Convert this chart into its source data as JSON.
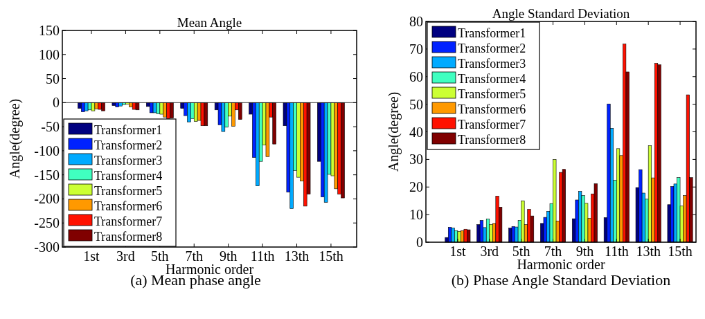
{
  "chart_data": [
    {
      "type": "bar",
      "title": "Mean Angle",
      "xlabel": "Harmonic order",
      "ylabel": "Angle(degree)",
      "categories": [
        "1st",
        "3rd",
        "5th",
        "7th",
        "9th",
        "11th",
        "13th",
        "15th"
      ],
      "ylim": [
        -300,
        150
      ],
      "yticks": [
        -300,
        -250,
        -200,
        -150,
        -100,
        -50,
        0,
        50,
        100,
        150
      ],
      "legend": "bottom left",
      "annotations": [
        "(a) Mean phase angle"
      ],
      "series": [
        {
          "name": "Transformer1",
          "color": "#000080",
          "values": [
            -12,
            -6,
            -8,
            -12,
            -15,
            -24,
            -48,
            -122
          ]
        },
        {
          "name": "Transformer2",
          "color": "#0022ff",
          "values": [
            -19,
            -9,
            -21,
            -27,
            -46,
            -114,
            -186,
            -196
          ]
        },
        {
          "name": "Transformer3",
          "color": "#00aaff",
          "values": [
            -17,
            -7,
            -21,
            -40,
            -60,
            -173,
            -220,
            -207
          ]
        },
        {
          "name": "Transformer4",
          "color": "#40ffc0",
          "values": [
            -15,
            -4,
            -23,
            -33,
            -51,
            -122,
            -141,
            -149
          ]
        },
        {
          "name": "Transformer5",
          "color": "#ccff33",
          "values": [
            -17,
            -3,
            -24,
            -39,
            -28,
            -88,
            -155,
            -152
          ]
        },
        {
          "name": "Transformer6",
          "color": "#ff9900",
          "values": [
            -13,
            -9,
            -30,
            -37,
            -49,
            -112,
            -163,
            -179
          ]
        },
        {
          "name": "Transformer7",
          "color": "#ff1100",
          "values": [
            -14,
            -14,
            -33,
            -48,
            -15,
            -30,
            -215,
            -190
          ]
        },
        {
          "name": "Transformer8",
          "color": "#800000",
          "values": [
            -17,
            -15,
            -32,
            -48,
            -35,
            -86,
            -190,
            -198
          ]
        }
      ]
    },
    {
      "type": "bar",
      "title": "Angle Standard Deviation",
      "xlabel": "Harmonic order",
      "ylabel": "Angle(degree)",
      "categories": [
        "1st",
        "3rd",
        "5th",
        "7th",
        "9th",
        "11th",
        "13th",
        "15th"
      ],
      "ylim": [
        0,
        80
      ],
      "yticks": [
        0,
        10,
        20,
        30,
        40,
        50,
        60,
        70,
        80
      ],
      "legend": "top left",
      "annotations": [
        "(b) Phase Angle Standard Deviation"
      ],
      "series": [
        {
          "name": "Transformer1",
          "color": "#000080",
          "values": [
            1.7,
            6.4,
            5.1,
            6.8,
            8.5,
            8.9,
            19.8,
            13.6
          ]
        },
        {
          "name": "Transformer2",
          "color": "#0022ff",
          "values": [
            5.4,
            7.9,
            5.7,
            9,
            15.3,
            50.1,
            26.3,
            20.2
          ]
        },
        {
          "name": "Transformer3",
          "color": "#00aaff",
          "values": [
            5.1,
            5.3,
            5.5,
            11.2,
            18.4,
            41.3,
            17.8,
            21.1
          ]
        },
        {
          "name": "Transformer4",
          "color": "#40ffc0",
          "values": [
            4.2,
            8.4,
            7.9,
            14,
            16.9,
            22.4,
            15.6,
            23.4
          ]
        },
        {
          "name": "Transformer5",
          "color": "#ccff33",
          "values": [
            3.9,
            6.4,
            15,
            30,
            14.1,
            33.9,
            35,
            13.1
          ]
        },
        {
          "name": "Transformer6",
          "color": "#ff9900",
          "values": [
            4.2,
            6.8,
            6.4,
            7.7,
            8.7,
            31.4,
            23.3,
            16.9
          ]
        },
        {
          "name": "Transformer7",
          "color": "#ff1100",
          "values": [
            4.7,
            16.7,
            11.9,
            25.3,
            17.5,
            71.8,
            64.8,
            53.4
          ]
        },
        {
          "name": "Transformer8",
          "color": "#800000",
          "values": [
            4.5,
            12.7,
            9.5,
            26.4,
            21.2,
            61.7,
            64.3,
            23.4
          ]
        }
      ]
    }
  ]
}
